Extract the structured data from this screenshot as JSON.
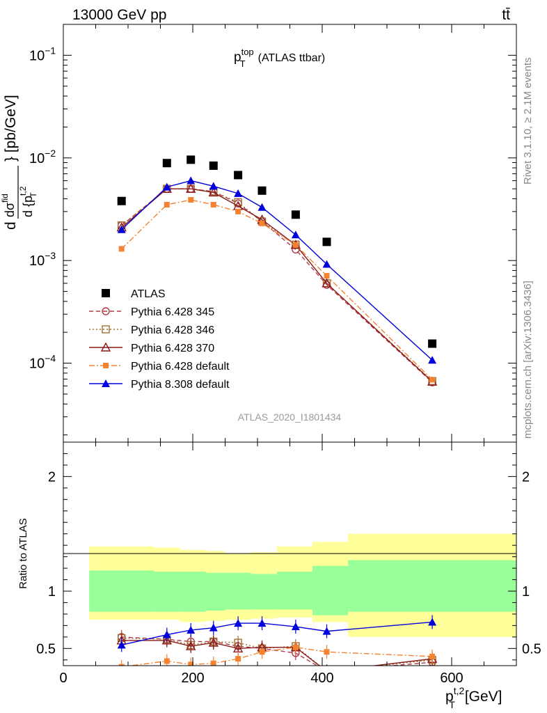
{
  "header": {
    "energy_label": "13000 GeV pp",
    "process_label": "tt̄"
  },
  "side_labels": {
    "rivet": "Rivet 3.1.10, ≥ 2.1M events",
    "mcplots": "mcplots.cern.ch [arXiv:1306.3436]"
  },
  "chart_data": [
    {
      "type": "line",
      "title_main": "p",
      "title_sup": "top",
      "title_sub": "T",
      "title_rest": "(ATLAS ttbar)",
      "ylabel": "dσ/d{p_T^{t,2}} [pb/GeV]",
      "ylabel_num": "dσ",
      "ylabel_num_sup": "fid",
      "ylabel_den": "d {p",
      "ylabel_den_sup": "t,2",
      "ylabel_den_sub": "T",
      "ylabel_unit": "} [pb/GeV]",
      "y_scale": "log",
      "ylim": [
        1.7e-05,
        0.2
      ],
      "xlim": [
        0,
        700
      ],
      "ytick_labels": [
        "10",
        "10",
        "10",
        "10"
      ],
      "ytick_exps": [
        "−1",
        "−2",
        "−3",
        "−4"
      ],
      "ytick_values": [
        0.1,
        0.01,
        0.001,
        0.0001
      ],
      "watermark": "ATLAS_2020_I1801434",
      "legend_position": "lower-left",
      "x": [
        90,
        160,
        197,
        232,
        270,
        307,
        359,
        407,
        570
      ],
      "series": [
        {
          "name": "ATLAS",
          "color": "#000000",
          "marker": "filled-square",
          "line": "none",
          "values": [
            0.0038,
            0.0089,
            0.0096,
            0.0084,
            0.0068,
            0.0048,
            0.0028,
            0.00152,
            0.000155
          ]
        },
        {
          "name": "Pythia 6.428 345",
          "color": "#b03a48",
          "marker": "open-circle",
          "line": "dashed",
          "values": [
            0.0022,
            0.005,
            0.005,
            0.0047,
            0.0036,
            0.0024,
            0.00128,
            0.00058,
            6.5e-05
          ]
        },
        {
          "name": "Pythia 6.428 346",
          "color": "#a07030",
          "marker": "open-square",
          "line": "dotted",
          "values": [
            0.0022,
            0.005,
            0.005,
            0.0047,
            0.0037,
            0.0024,
            0.00143,
            0.0006,
            6.7e-05
          ]
        },
        {
          "name": "Pythia 6.428 370",
          "color": "#8b1a1a",
          "marker": "open-triangle",
          "line": "solid",
          "values": [
            0.0021,
            0.005,
            0.005,
            0.0046,
            0.0034,
            0.0025,
            0.00142,
            0.0006,
            6.6e-05
          ]
        },
        {
          "name": "Pythia 6.428 default",
          "color": "#f58231",
          "marker": "small-filled-square",
          "line": "dashdot",
          "values": [
            0.0013,
            0.0035,
            0.0039,
            0.0035,
            0.003,
            0.0023,
            0.00142,
            0.00071,
            6.9e-05
          ]
        },
        {
          "name": "Pythia 8.308 default",
          "color": "#0000dd",
          "marker": "filled-triangle",
          "line": "solid",
          "values": [
            0.002,
            0.0052,
            0.006,
            0.0053,
            0.0045,
            0.0033,
            0.00178,
            0.00092,
            0.000107
          ]
        }
      ]
    },
    {
      "type": "line",
      "ylabel": "Ratio to ATLAS",
      "xlabel_main": "p",
      "xlabel_sup": "t,2",
      "xlabel_sub": "T",
      "xlabel_unit": "[GeV]",
      "xlim": [
        0,
        700
      ],
      "ylim": [
        0.35,
        2.3
      ],
      "xtick_labels": [
        "0",
        "200",
        "400",
        "600"
      ],
      "xtick_values": [
        0,
        200,
        400,
        600
      ],
      "ytick_labels": [
        "0.5",
        "1",
        "2"
      ],
      "ytick_values": [
        0.5,
        1,
        2
      ],
      "band_edges": [
        40,
        140,
        180,
        220,
        250,
        290,
        330,
        385,
        440,
        700
      ],
      "band_green": [
        [
          0.82,
          1.18
        ],
        [
          0.82,
          1.17
        ],
        [
          0.82,
          1.17
        ],
        [
          0.83,
          1.16
        ],
        [
          0.84,
          1.16
        ],
        [
          0.84,
          1.15
        ],
        [
          0.84,
          1.17
        ],
        [
          0.79,
          1.22
        ],
        [
          0.82,
          1.27
        ]
      ],
      "band_yellow": [
        [
          0.75,
          1.39
        ],
        [
          0.75,
          1.38
        ],
        [
          0.73,
          1.36
        ],
        [
          0.74,
          1.35
        ],
        [
          0.75,
          1.33
        ],
        [
          0.76,
          1.34
        ],
        [
          0.77,
          1.39
        ],
        [
          0.73,
          1.43
        ],
        [
          0.6,
          1.5
        ]
      ],
      "x": [
        90,
        160,
        197,
        232,
        270,
        307,
        359,
        407,
        570
      ],
      "series": [
        {
          "name": "Pythia 6.428 345",
          "color": "#b03a48",
          "marker": "open-circle",
          "line": "dashed",
          "values": [
            0.6,
            0.58,
            0.56,
            0.56,
            0.52,
            0.5,
            0.46,
            0.3,
            0.38
          ]
        },
        {
          "name": "Pythia 6.428 346",
          "color": "#a07030",
          "marker": "open-square",
          "line": "dotted",
          "values": [
            0.59,
            0.58,
            0.53,
            0.56,
            0.55,
            0.5,
            0.52,
            0.3,
            0.4
          ]
        },
        {
          "name": "Pythia 6.428 370",
          "color": "#8b1a1a",
          "marker": "open-triangle",
          "line": "solid",
          "values": [
            0.57,
            0.57,
            0.52,
            0.55,
            0.5,
            0.51,
            0.51,
            0.3,
            0.41
          ]
        },
        {
          "name": "Pythia 6.428 default",
          "color": "#f58231",
          "marker": "small-filled-square",
          "line": "dashdot",
          "values": [
            0.34,
            0.39,
            0.36,
            0.37,
            0.41,
            0.47,
            0.51,
            0.47,
            0.43
          ]
        },
        {
          "name": "Pythia 8.308 default",
          "color": "#0000dd",
          "marker": "filled-triangle",
          "line": "solid",
          "values": [
            0.53,
            0.62,
            0.66,
            0.68,
            0.72,
            0.72,
            0.69,
            0.65,
            0.73
          ]
        }
      ]
    }
  ]
}
